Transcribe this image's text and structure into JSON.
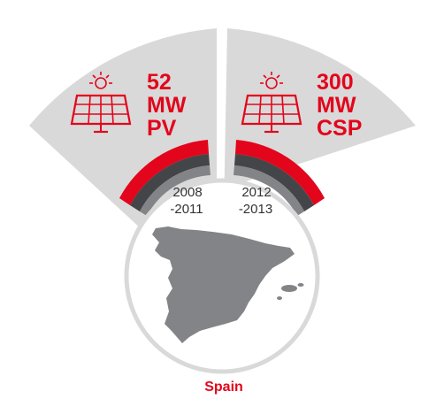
{
  "colors": {
    "accent": "#e3051b",
    "dark_ring": "#444548",
    "mid_ring": "#838487",
    "sector_fill": "#d9d9d9",
    "map_fill": "#838487",
    "period_text": "#333333"
  },
  "segments": [
    {
      "icon": "solar-panel-icon",
      "capacity": "52",
      "unit": "MW",
      "technology": "PV",
      "period_start": "2008",
      "period_end": "-2011"
    },
    {
      "icon": "solar-panel-icon",
      "capacity": "300",
      "unit": "MW",
      "technology": "CSP",
      "period_start": "2012",
      "period_end": "-2013"
    }
  ],
  "country": {
    "name": "Spain",
    "map_icon": "spain-map-icon"
  }
}
